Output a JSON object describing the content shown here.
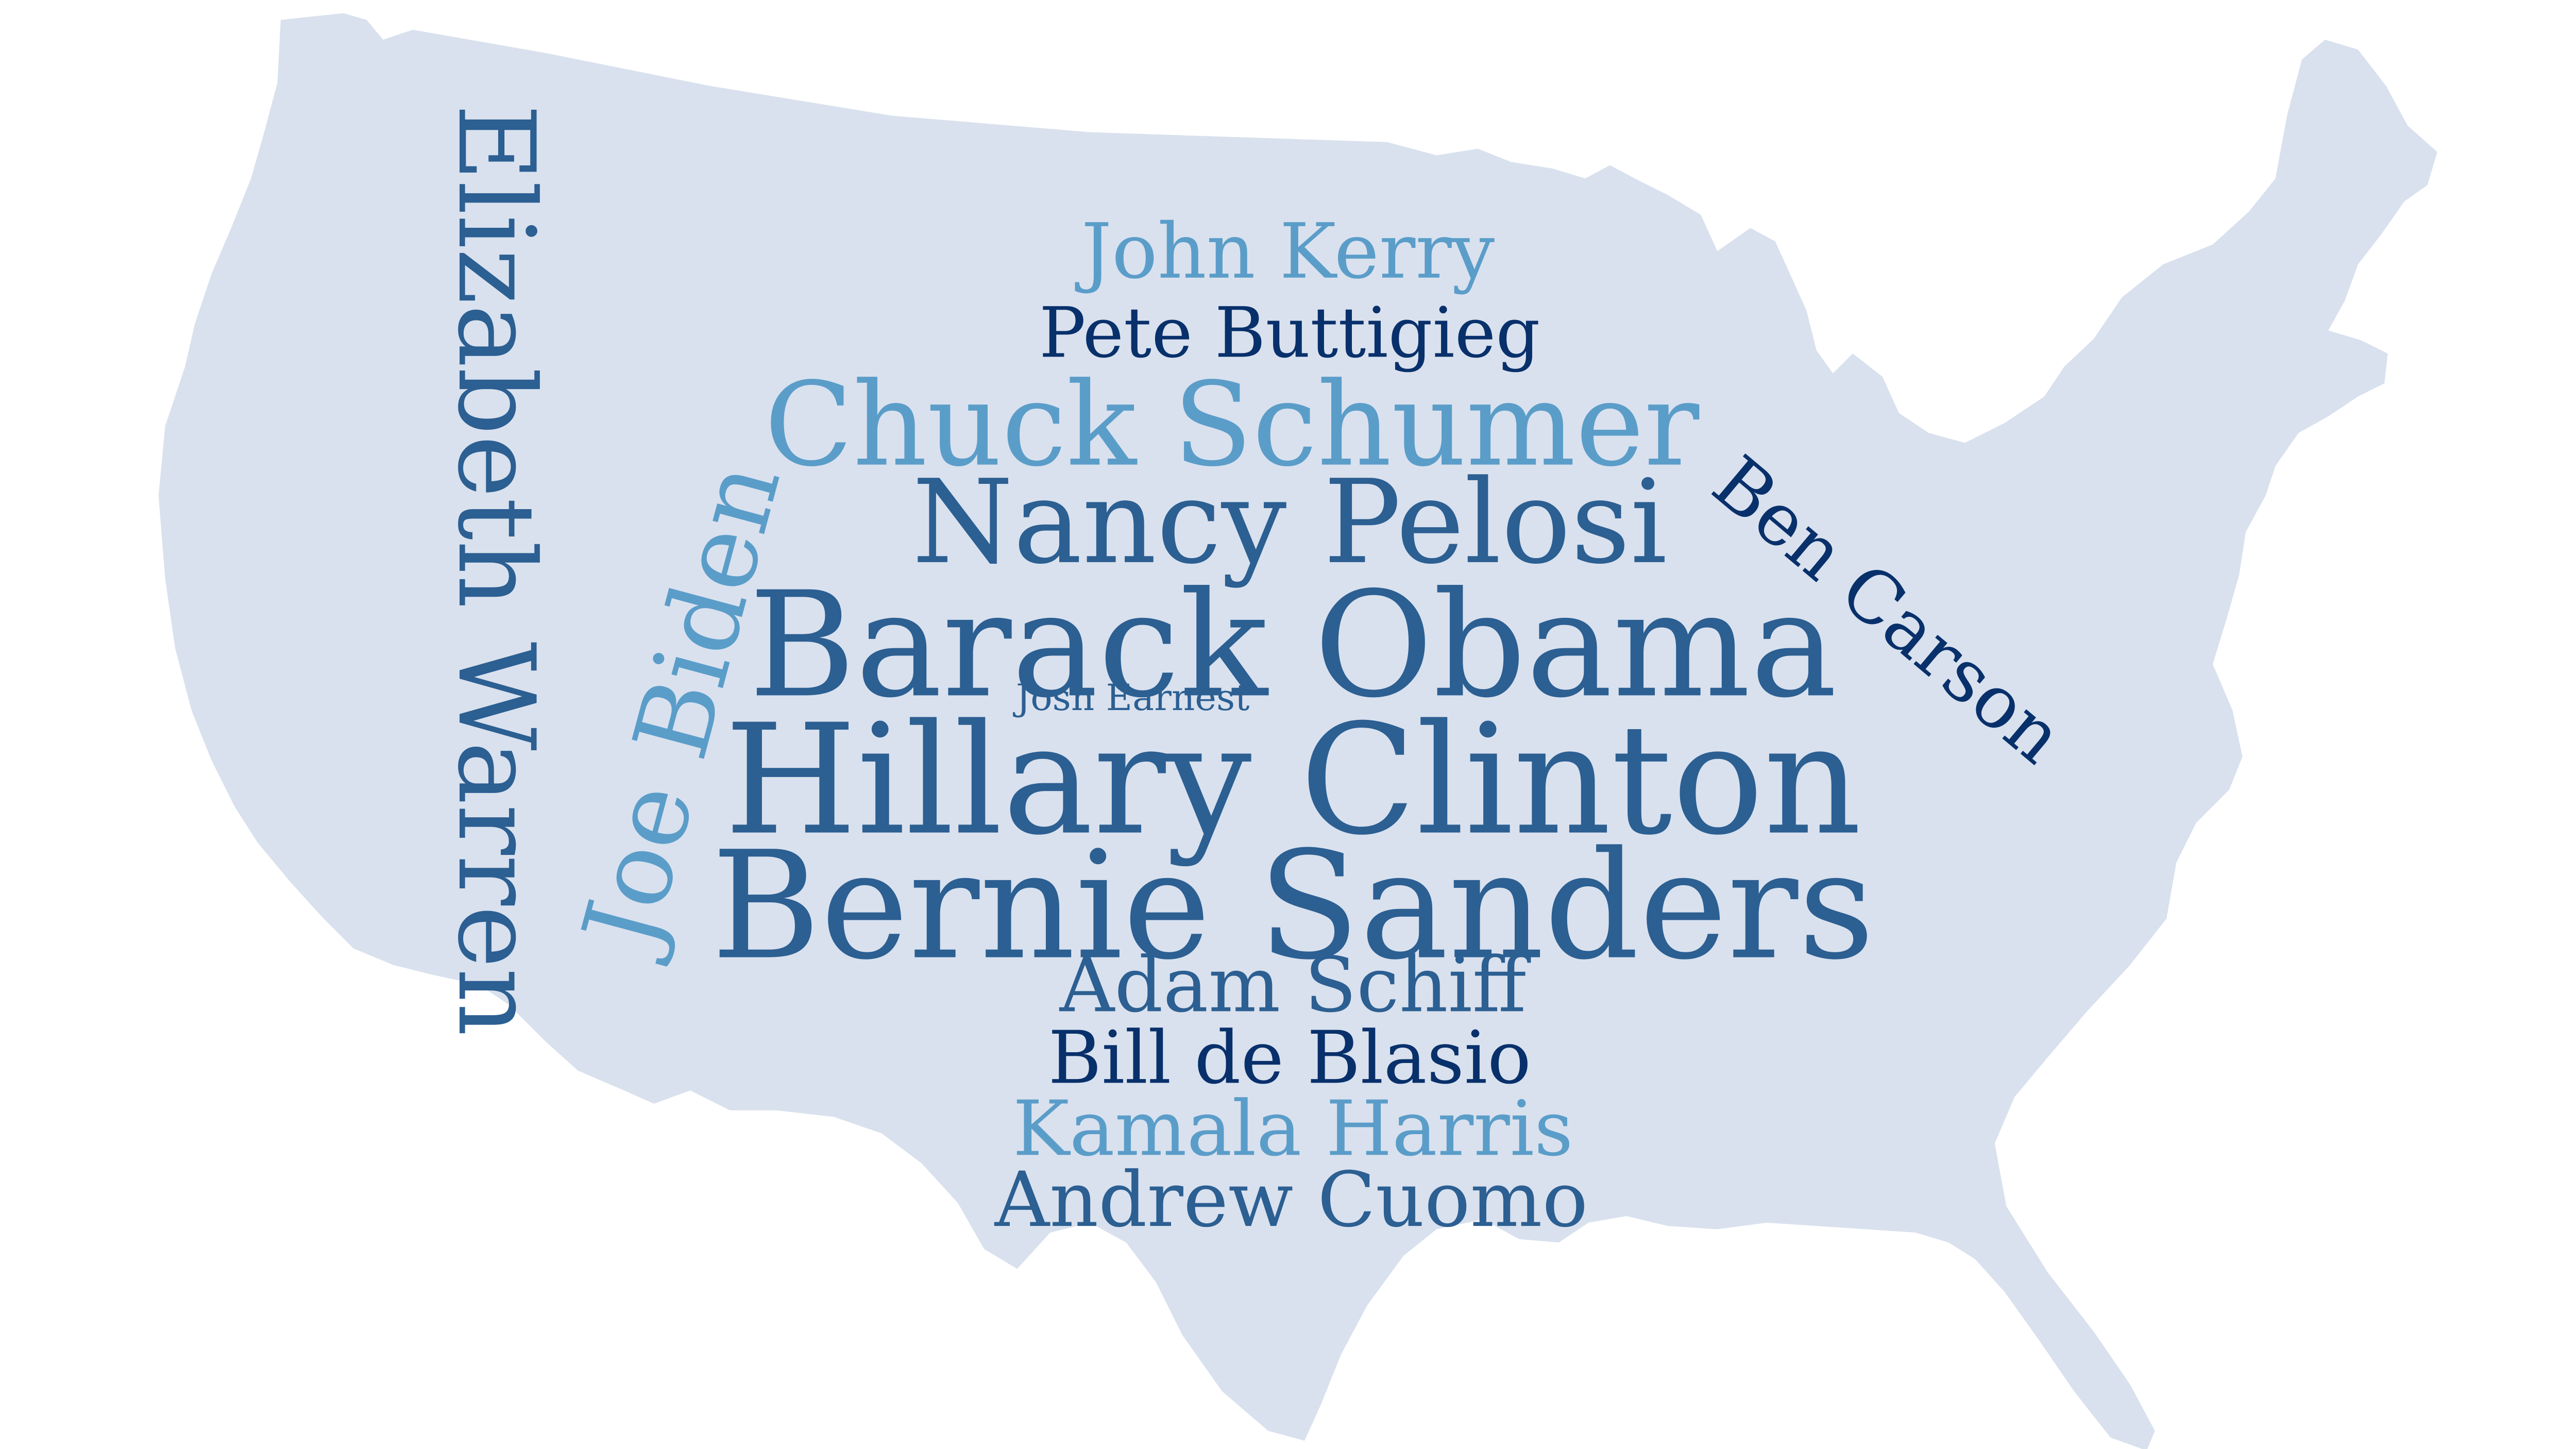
{
  "colors": {
    "background": "#ffffff",
    "map_fill": "#d9e1ee",
    "dark_navy": "#08306b",
    "medium_blue": "#2c5f92",
    "light_blue": "#5b9dc9"
  },
  "words": [
    {
      "text": "Hillary Clinton",
      "color": "#2c5f92",
      "rank": 1
    },
    {
      "text": "Bernie Sanders",
      "color": "#2c5f92",
      "rank": 2
    },
    {
      "text": "Barack Obama",
      "color": "#2c5f92",
      "rank": 3
    },
    {
      "text": "Elizabeth Warren",
      "color": "#2c5f92",
      "rank": 4
    },
    {
      "text": "Chuck Schumer",
      "color": "#5b9dc9",
      "rank": 5
    },
    {
      "text": "Nancy Pelosi",
      "color": "#2c5f92",
      "rank": 6
    },
    {
      "text": "Joe Biden",
      "color": "#5b9dc9",
      "rank": 7
    },
    {
      "text": "Adam Schiff",
      "color": "#2c5f92",
      "rank": 8
    },
    {
      "text": "Andrew Cuomo",
      "color": "#2c5f92",
      "rank": 9
    },
    {
      "text": "Kamala Harris",
      "color": "#5b9dc9",
      "rank": 10
    },
    {
      "text": "John Kerry",
      "color": "#5b9dc9",
      "rank": 11
    },
    {
      "text": "Bill de Blasio",
      "color": "#08306b",
      "rank": 12
    },
    {
      "text": "Ben Carson",
      "color": "#08306b",
      "rank": 13
    },
    {
      "text": "Pete Buttigieg",
      "color": "#08306b",
      "rank": 14
    },
    {
      "text": "Josh Earnest",
      "color": "#2c5f92",
      "rank": 15
    }
  ]
}
